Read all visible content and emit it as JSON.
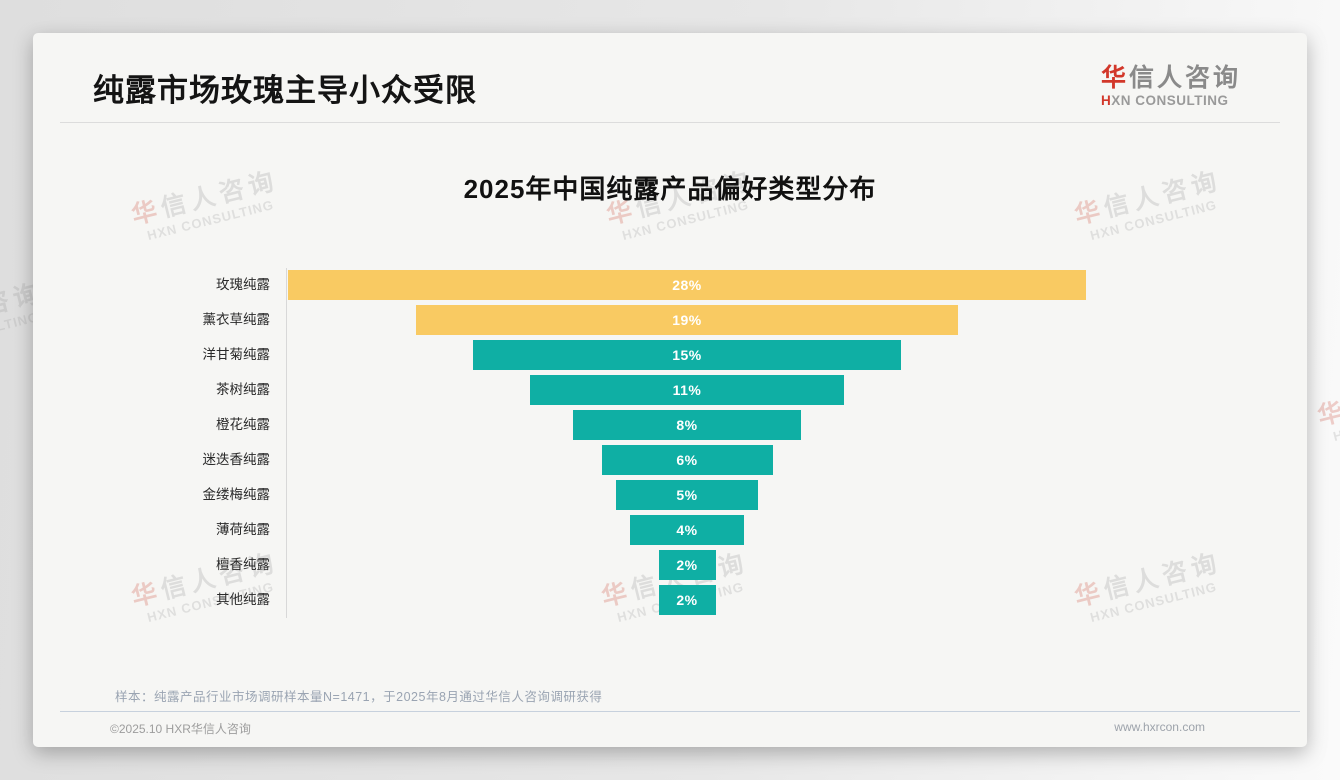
{
  "header": {
    "title": "纯露市场玫瑰主导小众受限"
  },
  "logo": {
    "cn_first": "华",
    "cn_rest": "信人咨询",
    "en_first": "H",
    "en_rest": "XN CONSULTING"
  },
  "watermark": {
    "cn_first": "华",
    "cn_rest": "信人咨询",
    "en": "HXN CONSULTING"
  },
  "chart_data": {
    "type": "bar",
    "title": "2025年中国纯露产品偏好类型分布",
    "orientation": "horizontal_centered_funnel",
    "categories": [
      "玫瑰纯露",
      "薰衣草纯露",
      "洋甘菊纯露",
      "茶树纯露",
      "橙花纯露",
      "迷迭香纯露",
      "金缕梅纯露",
      "薄荷纯露",
      "檀香纯露",
      "其他纯露"
    ],
    "values": [
      28,
      19,
      15,
      11,
      8,
      6,
      5,
      4,
      2,
      2
    ],
    "value_labels": [
      "28%",
      "19%",
      "15%",
      "11%",
      "8%",
      "6%",
      "5%",
      "4%",
      "2%",
      "2%"
    ],
    "unit": "%",
    "xlim": [
      0,
      28
    ],
    "highlight_count": 2,
    "colors": {
      "highlight": "#F9CA62",
      "default": "#0FAFA4"
    },
    "legend": "none",
    "grid": "off"
  },
  "footnote": {
    "text": "样本：纯露产品行业市场调研样本量N=1471，于2025年8月通过华信人咨询调研获得"
  },
  "footer": {
    "copyright": "©2025.10 HXR华信人咨询",
    "website": "www.hxrcon.com"
  }
}
